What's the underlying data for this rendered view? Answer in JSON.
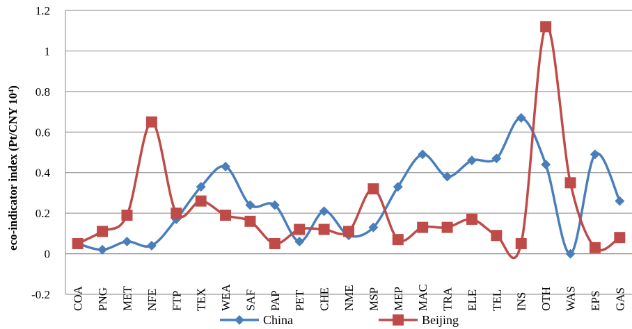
{
  "chart_data": {
    "type": "line",
    "title": "",
    "xlabel": "",
    "ylabel": "eco-indicator index (Pt/CNY 10⁴)",
    "ylim": [
      -0.2,
      1.2
    ],
    "yticks": [
      -0.2,
      0,
      0.2,
      0.4,
      0.6,
      0.8,
      1,
      1.2
    ],
    "ytick_labels": [
      "-0.2",
      "0",
      "0.2",
      "0.4",
      "0.6",
      "0.8",
      "1",
      "1.2"
    ],
    "grid": true,
    "smoothed": true,
    "legend_position": "bottom",
    "categories": [
      "COA",
      "PNG",
      "MET",
      "NFE",
      "FTP",
      "TEX",
      "WEA",
      "SAF",
      "PAP",
      "PET",
      "CHE",
      "NME",
      "MSP",
      "MEP",
      "MAC",
      "TRA",
      "ELE",
      "TEL",
      "INS",
      "OTH",
      "WAS",
      "EPS",
      "GAS"
    ],
    "series": [
      {
        "name": "China",
        "color": "#4a7ebb",
        "marker": "diamond",
        "values": [
          0.05,
          0.02,
          0.06,
          0.04,
          0.17,
          0.33,
          0.43,
          0.24,
          0.24,
          0.06,
          0.21,
          0.09,
          0.13,
          0.33,
          0.49,
          0.38,
          0.46,
          0.47,
          0.67,
          0.44,
          0.0,
          0.49,
          0.26
        ]
      },
      {
        "name": "Beijing",
        "color": "#be4b48",
        "marker": "square",
        "values": [
          0.05,
          0.11,
          0.19,
          0.65,
          0.2,
          0.26,
          0.19,
          0.16,
          0.05,
          0.12,
          0.12,
          0.11,
          0.32,
          0.07,
          0.13,
          0.13,
          0.17,
          0.09,
          0.05,
          1.12,
          0.35,
          0.03,
          0.08
        ]
      }
    ]
  }
}
